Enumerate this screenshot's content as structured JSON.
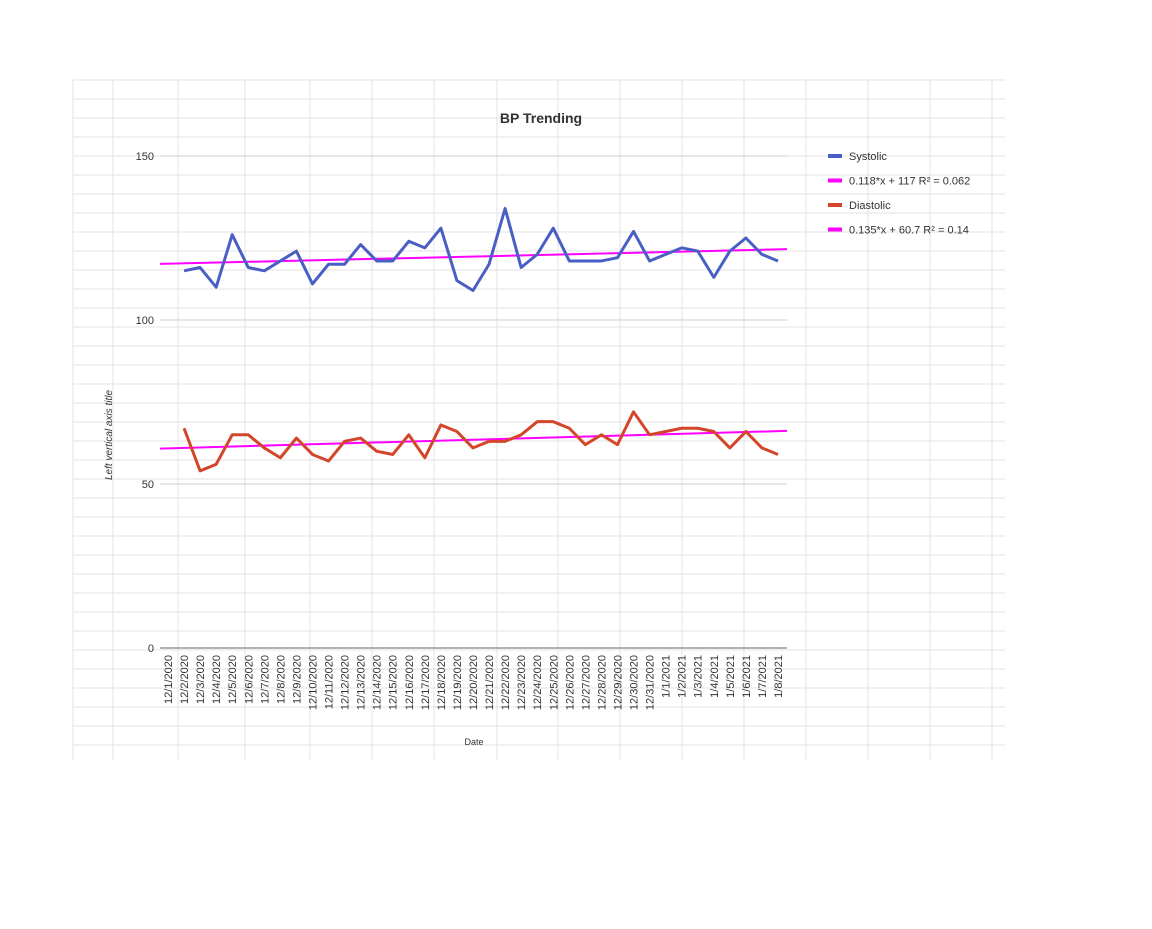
{
  "chart_data": {
    "type": "line",
    "title": "BP Trending",
    "x_label": "Date",
    "y_label": "Left vertical axis title",
    "categories": [
      "12/1/2020",
      "12/2/2020",
      "12/3/2020",
      "12/4/2020",
      "12/5/2020",
      "12/6/2020",
      "12/7/2020",
      "12/8/2020",
      "12/9/2020",
      "12/10/2020",
      "12/11/2020",
      "12/12/2020",
      "12/13/2020",
      "12/14/2020",
      "12/15/2020",
      "12/16/2020",
      "12/17/2020",
      "12/18/2020",
      "12/19/2020",
      "12/20/2020",
      "12/21/2020",
      "12/22/2020",
      "12/23/2020",
      "12/24/2020",
      "12/25/2020",
      "12/26/2020",
      "12/27/2020",
      "12/28/2020",
      "12/29/2020",
      "12/30/2020",
      "12/31/2020",
      "1/1/2021",
      "1/2/2021",
      "1/3/2021",
      "1/4/2021",
      "1/5/2021",
      "1/6/2021",
      "1/7/2021",
      "1/8/2021"
    ],
    "series": [
      {
        "name": "Systolic",
        "color": "#4a5fc4",
        "values": [
          null,
          115,
          116,
          110,
          126,
          116,
          115,
          118,
          121,
          111,
          117,
          117,
          123,
          118,
          118,
          124,
          122,
          128,
          112,
          109,
          117,
          134,
          116,
          120,
          128,
          118,
          118,
          118,
          119,
          127,
          118,
          120,
          122,
          121,
          113,
          121,
          125,
          120,
          118
        ],
        "trendline": {
          "name": "0.118*x + 117 R² = 0.062",
          "color": "#ff00ff",
          "values": [
            117.1,
            121.6
          ]
        }
      },
      {
        "name": "Diastolic",
        "color": "#d4462a",
        "values": [
          null,
          67,
          54,
          56,
          65,
          65,
          61,
          58,
          64,
          59,
          57,
          63,
          64,
          60,
          59,
          65,
          58,
          68,
          66,
          61,
          63,
          63,
          65,
          69,
          69,
          67,
          62,
          65,
          62,
          72,
          65,
          66,
          67,
          67,
          66,
          61,
          66,
          61,
          59
        ],
        "trendline": {
          "name": "0.135*x + 60.7 R² = 0.14",
          "color": "#ff00ff",
          "values": [
            60.8,
            66.2
          ]
        }
      }
    ],
    "ylim": [
      0,
      150
    ],
    "yticks": [
      0,
      50,
      100,
      150
    ],
    "grid": true,
    "legend": "right"
  }
}
